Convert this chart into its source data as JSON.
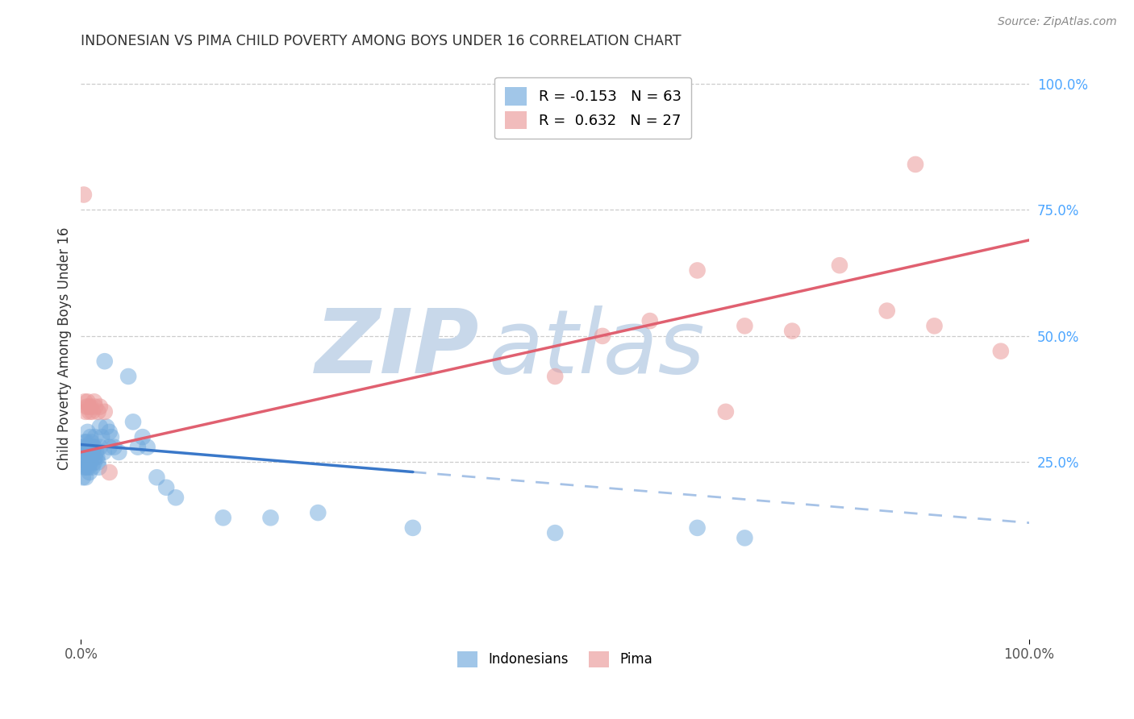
{
  "title": "INDONESIAN VS PIMA CHILD POVERTY AMONG BOYS UNDER 16 CORRELATION CHART",
  "source": "Source: ZipAtlas.com",
  "ylabel": "Child Poverty Among Boys Under 16",
  "r_indonesian": -0.153,
  "n_indonesian": 63,
  "r_pima": 0.632,
  "n_pima": 27,
  "indonesian_color": "#6fa8dc",
  "pima_color": "#ea9999",
  "indonesian_line_color": "#3a78c9",
  "pima_line_color": "#e06070",
  "background_color": "#ffffff",
  "watermark_color": "#c8d8ea",
  "indonesian_x": [
    0.001,
    0.002,
    0.002,
    0.003,
    0.003,
    0.004,
    0.004,
    0.004,
    0.005,
    0.005,
    0.005,
    0.006,
    0.006,
    0.006,
    0.007,
    0.007,
    0.007,
    0.008,
    0.008,
    0.009,
    0.009,
    0.01,
    0.01,
    0.01,
    0.011,
    0.011,
    0.012,
    0.012,
    0.013,
    0.014,
    0.014,
    0.015,
    0.015,
    0.016,
    0.017,
    0.018,
    0.019,
    0.02,
    0.02,
    0.022,
    0.024,
    0.025,
    0.027,
    0.03,
    0.03,
    0.032,
    0.035,
    0.04,
    0.05,
    0.055,
    0.06,
    0.065,
    0.07,
    0.08,
    0.09,
    0.1,
    0.15,
    0.2,
    0.25,
    0.35,
    0.5,
    0.65,
    0.7
  ],
  "indonesian_y": [
    0.28,
    0.22,
    0.26,
    0.25,
    0.28,
    0.24,
    0.27,
    0.29,
    0.22,
    0.25,
    0.27,
    0.24,
    0.27,
    0.29,
    0.25,
    0.28,
    0.31,
    0.24,
    0.27,
    0.23,
    0.26,
    0.25,
    0.28,
    0.3,
    0.26,
    0.29,
    0.24,
    0.27,
    0.28,
    0.25,
    0.28,
    0.26,
    0.3,
    0.27,
    0.26,
    0.25,
    0.24,
    0.28,
    0.32,
    0.3,
    0.27,
    0.45,
    0.32,
    0.28,
    0.31,
    0.3,
    0.28,
    0.27,
    0.42,
    0.33,
    0.28,
    0.3,
    0.28,
    0.22,
    0.2,
    0.18,
    0.14,
    0.14,
    0.15,
    0.12,
    0.11,
    0.12,
    0.1
  ],
  "pima_x": [
    0.003,
    0.004,
    0.005,
    0.006,
    0.007,
    0.008,
    0.009,
    0.01,
    0.012,
    0.014,
    0.015,
    0.018,
    0.02,
    0.025,
    0.03,
    0.5,
    0.55,
    0.6,
    0.65,
    0.68,
    0.7,
    0.75,
    0.8,
    0.85,
    0.88,
    0.9,
    0.97
  ],
  "pima_y": [
    0.78,
    0.37,
    0.35,
    0.36,
    0.37,
    0.36,
    0.35,
    0.36,
    0.35,
    0.37,
    0.36,
    0.35,
    0.36,
    0.35,
    0.23,
    0.42,
    0.5,
    0.53,
    0.63,
    0.35,
    0.52,
    0.51,
    0.64,
    0.55,
    0.84,
    0.52,
    0.47
  ],
  "xlim": [
    0.0,
    1.0
  ],
  "ylim": [
    -0.1,
    1.05
  ],
  "right_yticks": [
    0.25,
    0.5,
    0.75,
    1.0
  ],
  "right_ytick_labels": [
    "25.0%",
    "50.0%",
    "75.0%",
    "100.0%"
  ],
  "xtick_labels": [
    "0.0%",
    "100.0%"
  ],
  "indonesian_line_start": 0.0,
  "indonesian_line_solid_end": 0.35,
  "indonesian_line_end": 1.0,
  "indonesian_intercept": 0.285,
  "indonesian_slope": -0.155,
  "pima_intercept": 0.27,
  "pima_slope": 0.42
}
